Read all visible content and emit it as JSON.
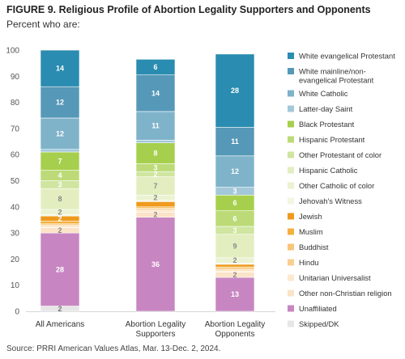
{
  "title": "FIGURE 9.  Religious Profile of Abortion Legality Supporters and Opponents",
  "subtitle": "Percent who are:",
  "source": "Source: PRRI American Values Atlas, Mar. 13-Dec. 2, 2024.",
  "chart_data": {
    "type": "bar",
    "stacked": true,
    "categories": [
      "All Americans",
      "Abortion Legality\nSupporters",
      "Abortion Legality\nOpponents"
    ],
    "ylim": [
      0,
      100
    ],
    "yticks": [
      0,
      10,
      20,
      30,
      40,
      50,
      60,
      70,
      80,
      90,
      100
    ],
    "grid": false,
    "legend_position": "right",
    "series": [
      {
        "name": "Skipped/DK",
        "color": "#e6e6e6",
        "values": [
          2,
          0,
          0
        ],
        "labels": [
          "2",
          "",
          ""
        ],
        "label_color": "#777777"
      },
      {
        "name": "Unaffiliated",
        "color": "#c786c1",
        "values": [
          28,
          36,
          13
        ],
        "labels": [
          "28",
          "36",
          "13"
        ],
        "label_color": "#ffffff"
      },
      {
        "name": "Other non-Christian religion",
        "color": "#fbe3c8",
        "values": [
          2,
          2,
          2
        ],
        "labels": [
          "2",
          "2",
          "2"
        ],
        "label_color": "#888888"
      },
      {
        "name": "Unitarian Universalist",
        "color": "#fde9cf",
        "values": [
          0.5,
          0.5,
          0.5
        ],
        "labels": [
          "",
          "",
          ""
        ],
        "label_color": "#888888"
      },
      {
        "name": "Hindu",
        "color": "#f9cf91",
        "values": [
          0.5,
          0.5,
          0.5
        ],
        "labels": [
          "",
          "",
          ""
        ],
        "label_color": "#888888"
      },
      {
        "name": "Buddhist",
        "color": "#f8c57a",
        "values": [
          0.5,
          0.5,
          0.5
        ],
        "labels": [
          "",
          "",
          ""
        ],
        "label_color": "#888888"
      },
      {
        "name": "Muslim",
        "color": "#f4b03e",
        "values": [
          1,
          0.5,
          0.5
        ],
        "labels": [
          "",
          "",
          ""
        ],
        "label_color": "#ffffff"
      },
      {
        "name": "Jewish",
        "color": "#ee9a1c",
        "values": [
          2,
          2,
          1
        ],
        "labels": [
          "2",
          "",
          ""
        ],
        "label_color": "#ffffff"
      },
      {
        "name": "Jehovah's Witness",
        "color": "#f2f6e2",
        "values": [
          0.5,
          0.5,
          0.5
        ],
        "labels": [
          "",
          "",
          ""
        ],
        "label_color": "#888888"
      },
      {
        "name": "Other Catholic of color",
        "color": "#ebf2d1",
        "values": [
          2,
          2,
          2
        ],
        "labels": [
          "2",
          "2",
          "2"
        ],
        "label_color": "#888888"
      },
      {
        "name": "Hispanic Catholic",
        "color": "#e3eec0",
        "values": [
          8,
          7,
          9
        ],
        "labels": [
          "8",
          "7",
          "9"
        ],
        "label_color": "#888888"
      },
      {
        "name": "Other Protestant of color",
        "color": "#cfe5a0",
        "values": [
          3,
          2,
          3
        ],
        "labels": [
          "3",
          "2",
          "3"
        ],
        "label_color": "#ffffff"
      },
      {
        "name": "Hispanic Protestant",
        "color": "#bcdb78",
        "values": [
          4,
          3,
          6
        ],
        "labels": [
          "4",
          "3",
          "6"
        ],
        "label_color": "#ffffff"
      },
      {
        "name": "Black Protestant",
        "color": "#a6cf4d",
        "values": [
          7,
          8,
          6
        ],
        "labels": [
          "7",
          "8",
          "6"
        ],
        "label_color": "#ffffff"
      },
      {
        "name": "Latter-day Saint",
        "color": "#a3c8d9",
        "values": [
          1,
          1,
          3
        ],
        "labels": [
          "",
          "",
          "3"
        ],
        "label_color": "#ffffff"
      },
      {
        "name": "White Catholic",
        "color": "#7fb3ca",
        "values": [
          12,
          11,
          12
        ],
        "labels": [
          "12",
          "11",
          "12"
        ],
        "label_color": "#ffffff"
      },
      {
        "name": "White mainline/non-evangelical Protestant",
        "color": "#5698b7",
        "values": [
          12,
          14,
          11
        ],
        "labels": [
          "12",
          "14",
          "11"
        ],
        "label_color": "#ffffff"
      },
      {
        "name": "White evangelical Protestant",
        "color": "#2a8cb0",
        "values": [
          14,
          6,
          28
        ],
        "labels": [
          "14",
          "6",
          "28"
        ],
        "label_color": "#ffffff"
      }
    ],
    "legend": [
      {
        "name": "White evangelical Protestant",
        "color": "#2a8cb0"
      },
      {
        "name": "White mainline/non-\nevangelical Protestant",
        "color": "#5698b7"
      },
      {
        "name": "White Catholic",
        "color": "#7fb3ca"
      },
      {
        "name": "Latter-day Saint",
        "color": "#a3c8d9"
      },
      {
        "name": "Black Protestant",
        "color": "#a6cf4d"
      },
      {
        "name": "Hispanic Protestant",
        "color": "#bcdb78"
      },
      {
        "name": "Other Protestant of color",
        "color": "#cfe5a0"
      },
      {
        "name": "Hispanic Catholic",
        "color": "#e3eec0"
      },
      {
        "name": "Other Catholic of color",
        "color": "#ebf2d1"
      },
      {
        "name": "Jehovah's Witness",
        "color": "#f2f6e2"
      },
      {
        "name": "Jewish",
        "color": "#ee9a1c"
      },
      {
        "name": "Muslim",
        "color": "#f4b03e"
      },
      {
        "name": "Buddhist",
        "color": "#f8c57a"
      },
      {
        "name": "Hindu",
        "color": "#f9cf91"
      },
      {
        "name": "Unitarian Universalist",
        "color": "#fde9cf"
      },
      {
        "name": "Other non-Christian religion",
        "color": "#fbe3c8"
      },
      {
        "name": "Unaffiliated",
        "color": "#c786c1"
      },
      {
        "name": "Skipped/DK",
        "color": "#e6e6e6"
      }
    ]
  }
}
